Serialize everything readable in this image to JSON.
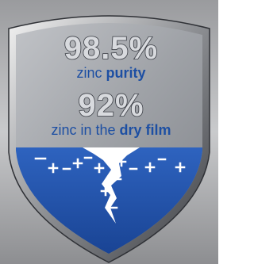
{
  "badge": {
    "stat1": {
      "value": "98.5%",
      "caption": [
        "zinc",
        "purity"
      ]
    },
    "stat2": {
      "value": "92%",
      "caption": [
        "zinc in the",
        "dry film"
      ]
    }
  }
}
